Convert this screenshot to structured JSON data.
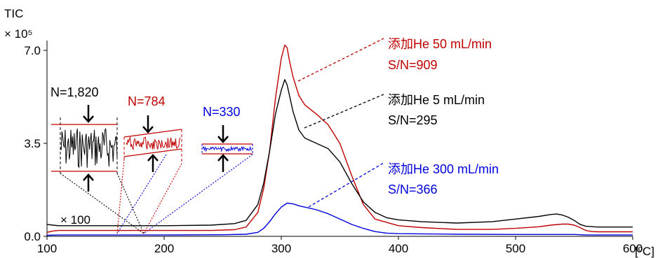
{
  "chart_data": {
    "type": "line",
    "ylabel": "TIC",
    "yunit": "× 10⁵",
    "xunit": "[ºC]",
    "xlim": [
      100,
      600
    ],
    "ylim": [
      0,
      7.0
    ],
    "x_ticks": [
      100,
      200,
      300,
      400,
      500,
      600
    ],
    "y_ticks": [
      0.0,
      3.5,
      7.0
    ],
    "y_tick_labels": [
      "0.0",
      "3.5",
      "7.0"
    ],
    "series": [
      {
        "name": "添加He 50 mL/min",
        "sn": "S/N=909",
        "color": "#c00000",
        "x": [
          100,
          105,
          110,
          120,
          150,
          200,
          240,
          260,
          270,
          280,
          285,
          290,
          295,
          300,
          303,
          305,
          307,
          310,
          315,
          320,
          330,
          340,
          350,
          360,
          370,
          380,
          400,
          420,
          450,
          480,
          500,
          520,
          530,
          540,
          545,
          550,
          555,
          560,
          565,
          570,
          600
        ],
        "y": [
          0.15,
          0.2,
          0.22,
          0.22,
          0.22,
          0.22,
          0.22,
          0.25,
          0.35,
          0.9,
          1.8,
          3.2,
          5.2,
          6.7,
          7.2,
          7.1,
          6.6,
          6.0,
          5.3,
          4.95,
          4.6,
          4.2,
          3.5,
          2.3,
          1.2,
          0.65,
          0.4,
          0.33,
          0.26,
          0.26,
          0.3,
          0.36,
          0.42,
          0.46,
          0.46,
          0.42,
          0.33,
          0.22,
          0.18,
          0.17,
          0.17
        ]
      },
      {
        "name": "添加He 5 mL/min",
        "sn": "S/N=295",
        "color": "#000000",
        "x": [
          100,
          105,
          110,
          150,
          200,
          240,
          260,
          270,
          280,
          285,
          290,
          295,
          300,
          303,
          305,
          307,
          310,
          315,
          320,
          330,
          340,
          350,
          360,
          370,
          380,
          390,
          400,
          420,
          450,
          480,
          500,
          520,
          530,
          535,
          540,
          545,
          550,
          555,
          560,
          570,
          600
        ],
        "y": [
          0.45,
          0.42,
          0.4,
          0.4,
          0.4,
          0.42,
          0.48,
          0.6,
          1.2,
          2.0,
          3.2,
          4.6,
          5.5,
          5.9,
          5.7,
          5.3,
          4.7,
          4.0,
          3.7,
          3.5,
          3.3,
          2.8,
          2.0,
          1.3,
          0.9,
          0.7,
          0.62,
          0.55,
          0.5,
          0.55,
          0.65,
          0.75,
          0.82,
          0.84,
          0.8,
          0.72,
          0.6,
          0.45,
          0.38,
          0.35,
          0.35
        ]
      },
      {
        "name": "添加He 300 mL/min",
        "sn": "S/N=366",
        "color": "#0000dd",
        "x": [
          100,
          110,
          150,
          200,
          250,
          270,
          280,
          285,
          290,
          295,
          300,
          305,
          310,
          315,
          320,
          330,
          340,
          350,
          360,
          370,
          380,
          390,
          400,
          450,
          500,
          550,
          560,
          600
        ],
        "y": [
          0.04,
          0.05,
          0.05,
          0.05,
          0.06,
          0.08,
          0.15,
          0.3,
          0.55,
          0.85,
          1.1,
          1.25,
          1.22,
          1.15,
          1.1,
          1.0,
          0.85,
          0.65,
          0.45,
          0.3,
          0.18,
          0.12,
          0.1,
          0.08,
          0.07,
          0.07,
          0.05,
          0.05
        ]
      }
    ],
    "annotations": {
      "magnify": "× 100",
      "noise": [
        {
          "label": "N=1,820",
          "color": "#000000"
        },
        {
          "label": "N=784",
          "color": "#c00000"
        },
        {
          "label": "N=330",
          "color": "#0000dd"
        }
      ]
    }
  }
}
